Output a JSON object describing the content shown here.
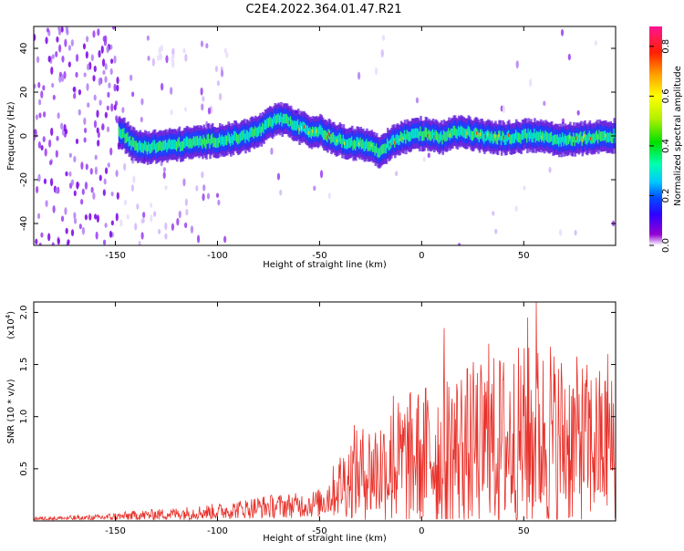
{
  "title": "C2E4.2022.364.01.47.R21",
  "colorbar": {
    "label": "Normalized spectral amplitude",
    "ticks": [
      0.0,
      0.2,
      0.4,
      0.6,
      0.8
    ],
    "range": [
      0.0,
      0.88
    ]
  },
  "chart_data": [
    {
      "type": "heatmap",
      "xlabel": "Height of straight line (km)",
      "ylabel": "Frequency (Hz)",
      "xlim": [
        -190,
        95
      ],
      "ylim": [
        -50,
        50
      ],
      "xticks": [
        -150,
        -100,
        -50,
        0,
        50
      ],
      "yticks": [
        -40,
        -20,
        0,
        20,
        40
      ],
      "ridge": {
        "x": [
          -147,
          -140,
          -130,
          -120,
          -110,
          -100,
          -90,
          -80,
          -75,
          -70,
          -65,
          -60,
          -55,
          -50,
          -45,
          -40,
          -35,
          -30,
          -25,
          -20,
          -15,
          -10,
          -5,
          0,
          5,
          10,
          15,
          20,
          25,
          30,
          40,
          50,
          60,
          70,
          80,
          90
        ],
        "freq": [
          2,
          -5,
          -5,
          -4,
          -3,
          -2,
          -1,
          2,
          5,
          8,
          7,
          4,
          2,
          2,
          0,
          -2,
          -3,
          -4,
          -5,
          -7,
          -3,
          -1,
          0,
          1,
          0,
          -1,
          1,
          2,
          1,
          0,
          -1,
          0,
          0,
          -2,
          -1,
          0
        ]
      }
    },
    {
      "type": "line",
      "xlabel": "Height of straight line (km)",
      "ylabel": "SNR (10 * v/v)",
      "scale_note": "(x10",
      "scale_exp": "4",
      "scale_close": ")",
      "xlim": [
        -190,
        95
      ],
      "ylim": [
        0,
        2.1
      ],
      "xticks": [
        -150,
        -100,
        -50,
        0,
        50
      ],
      "yticks": [
        0.5,
        1.0,
        1.5,
        2.0
      ],
      "color": "#e8322b",
      "envelope": {
        "x": [
          -190,
          -160,
          -140,
          -120,
          -100,
          -90,
          -80,
          -70,
          -60,
          -50,
          -45,
          -40,
          -35,
          -30,
          -20,
          -10,
          0,
          10,
          20,
          30,
          40,
          50,
          60,
          70,
          80,
          90,
          95
        ],
        "mean": [
          0.02,
          0.03,
          0.05,
          0.07,
          0.09,
          0.11,
          0.13,
          0.14,
          0.15,
          0.17,
          0.25,
          0.35,
          0.42,
          0.45,
          0.5,
          0.55,
          0.62,
          0.66,
          0.7,
          0.72,
          0.75,
          0.78,
          0.8,
          0.78,
          0.74,
          0.72,
          0.7
        ],
        "amp": [
          0.02,
          0.03,
          0.05,
          0.06,
          0.08,
          0.09,
          0.11,
          0.12,
          0.12,
          0.14,
          0.22,
          0.32,
          0.4,
          0.45,
          0.55,
          0.65,
          0.7,
          0.75,
          0.8,
          0.85,
          0.88,
          0.92,
          0.9,
          0.85,
          0.8,
          0.75,
          0.7
        ]
      },
      "peaks": [
        {
          "x": 56,
          "y": 2.1
        },
        {
          "x": 52,
          "y": 1.95
        },
        {
          "x": 11,
          "y": 1.85
        },
        {
          "x": 33,
          "y": 1.7
        },
        {
          "x": 91,
          "y": 1.6
        },
        {
          "x": 63,
          "y": 1.67
        },
        {
          "x": -14,
          "y": 1.2
        },
        {
          "x": -33,
          "y": 0.92
        }
      ]
    }
  ]
}
